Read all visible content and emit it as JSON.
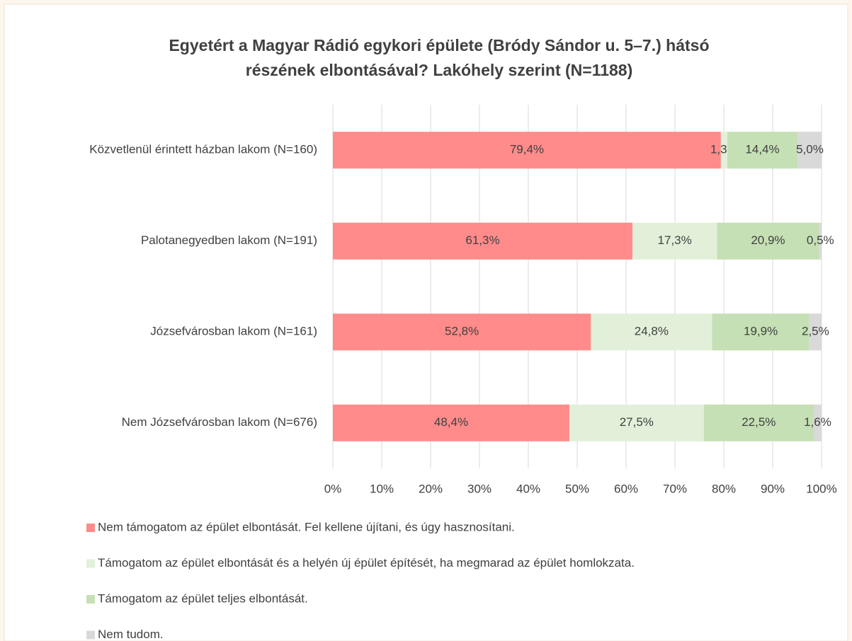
{
  "chart_data": {
    "type": "stacked_barh",
    "title": [
      "Egyetért a Magyar Rádió egykori épülete (Bródy Sándor u. 5–7.) hátsó",
      "részének elbontásával? Lakóhely szerint (N=1188)"
    ],
    "categories": [
      "Közvetlenül érintett házban lakom (N=160)",
      "Palotanegyedben lakom (N=191)",
      "Józsefvárosban lakom (N=161)",
      "Nem Józsefvárosban lakom (N=676)"
    ],
    "series": [
      {
        "name": "Nem támogatom az épület elbontását. Fel kellene újítani, és úgy hasznosítani.",
        "color": "#ff8b8b",
        "values": [
          79.4,
          61.3,
          52.8,
          48.4
        ],
        "value_labels": [
          "79,4%",
          "61,3%",
          "52,8%",
          "48,4%"
        ]
      },
      {
        "name": "Támogatom az épület elbontását és a helyén új épület építését, ha megmarad az épület homlokzata.",
        "color": "#e2f0d9",
        "values": [
          1.3,
          17.3,
          24.8,
          27.5
        ],
        "value_labels": [
          "1,3%",
          "17,3%",
          "24,8%",
          "27,5%"
        ]
      },
      {
        "name": "Támogatom az épület teljes elbontását.",
        "color": "#c5e0b4",
        "values": [
          14.4,
          20.9,
          19.9,
          22.5
        ],
        "value_labels": [
          "14,4%",
          "20,9%",
          "19,9%",
          "22,5%"
        ]
      },
      {
        "name": "Nem tudom.",
        "color": "#d9d9d9",
        "values": [
          5.0,
          0.5,
          2.5,
          1.6
        ],
        "value_labels": [
          "5,0%",
          "0,5%",
          "2,5%",
          "1,6%"
        ]
      }
    ],
    "xlim": [
      0,
      100
    ],
    "xticks": [
      {
        "value": 0,
        "label": "0%"
      },
      {
        "value": 10,
        "label": "10%"
      },
      {
        "value": 20,
        "label": "20%"
      },
      {
        "value": 30,
        "label": "30%"
      },
      {
        "value": 40,
        "label": "40%"
      },
      {
        "value": 50,
        "label": "50%"
      },
      {
        "value": 60,
        "label": "60%"
      },
      {
        "value": 70,
        "label": "70%"
      },
      {
        "value": 80,
        "label": "80%"
      },
      {
        "value": 90,
        "label": "90%"
      },
      {
        "value": 100,
        "label": "100%"
      }
    ],
    "grid": true,
    "legend": "bottom"
  }
}
